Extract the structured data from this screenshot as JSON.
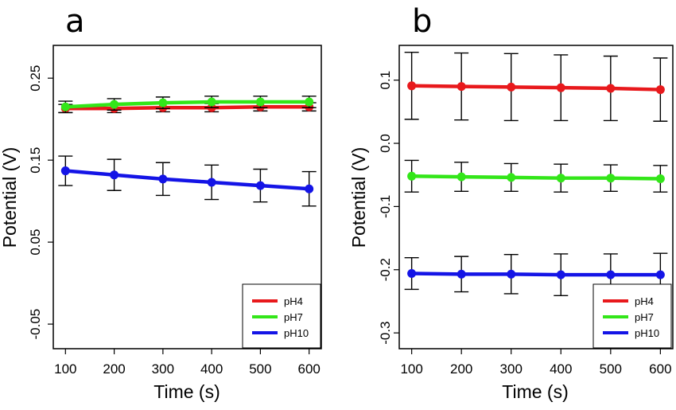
{
  "chart_data": [
    {
      "type": "line",
      "panel_label": "a",
      "xlabel": "Time (s)",
      "ylabel": "Potential (V)",
      "x": [
        100,
        200,
        300,
        400,
        500,
        600
      ],
      "xticks": [
        "100",
        "200",
        "300",
        "400",
        "500",
        "600"
      ],
      "yticks": [
        "-0.05",
        "0.05",
        "0.15",
        "0.25"
      ],
      "ytick_values": [
        -0.05,
        0.05,
        0.15,
        0.25
      ],
      "xlim": [
        75,
        625
      ],
      "ylim": [
        -0.08,
        0.29
      ],
      "legend_position": "bottom-right",
      "grid": false,
      "series": [
        {
          "name": "pH4",
          "color": "#e8191c",
          "values": [
            0.213,
            0.213,
            0.214,
            0.214,
            0.215,
            0.215
          ],
          "errors": [
            0.005,
            0.005,
            0.005,
            0.005,
            0.005,
            0.005
          ]
        },
        {
          "name": "pH7",
          "color": "#33e619",
          "values": [
            0.215,
            0.218,
            0.22,
            0.221,
            0.221,
            0.221
          ],
          "errors": [
            0.007,
            0.007,
            0.007,
            0.007,
            0.007,
            0.007
          ]
        },
        {
          "name": "pH10",
          "color": "#1414e6",
          "values": [
            0.137,
            0.132,
            0.127,
            0.123,
            0.119,
            0.115
          ],
          "errors": [
            0.018,
            0.019,
            0.02,
            0.021,
            0.02,
            0.021
          ]
        }
      ]
    },
    {
      "type": "line",
      "panel_label": "b",
      "xlabel": "Time (s)",
      "ylabel": "Potential (V)",
      "x": [
        100,
        200,
        300,
        400,
        500,
        600
      ],
      "xticks": [
        "100",
        "200",
        "300",
        "400",
        "500",
        "600"
      ],
      "yticks": [
        "-0.3",
        "-0.2",
        "-0.1",
        "0.0",
        "0.1"
      ],
      "ytick_values": [
        -0.3,
        -0.2,
        -0.1,
        0.0,
        0.1
      ],
      "xlim": [
        75,
        625
      ],
      "ylim": [
        -0.325,
        0.155
      ],
      "legend_position": "bottom-right",
      "grid": false,
      "series": [
        {
          "name": "pH4",
          "color": "#e8191c",
          "values": [
            0.091,
            0.09,
            0.089,
            0.088,
            0.087,
            0.085
          ],
          "errors": [
            0.053,
            0.053,
            0.053,
            0.052,
            0.051,
            0.05
          ]
        },
        {
          "name": "pH7",
          "color": "#33e619",
          "values": [
            -0.052,
            -0.053,
            -0.054,
            -0.055,
            -0.055,
            -0.056
          ],
          "errors": [
            0.025,
            0.023,
            0.022,
            0.022,
            0.021,
            0.021
          ]
        },
        {
          "name": "pH10",
          "color": "#1414e6",
          "values": [
            -0.206,
            -0.207,
            -0.207,
            -0.208,
            -0.208,
            -0.208
          ],
          "errors": [
            0.025,
            0.028,
            0.031,
            0.033,
            0.033,
            0.034
          ]
        }
      ]
    }
  ]
}
